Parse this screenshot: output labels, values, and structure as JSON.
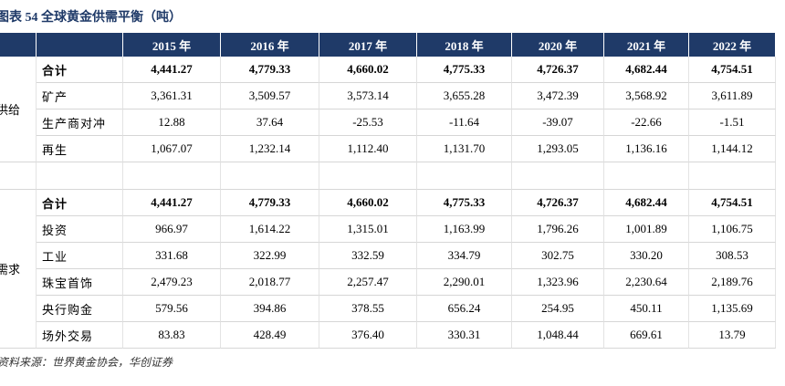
{
  "title": "图表 54  全球黄金供需平衡（吨）",
  "table": {
    "columns": [
      "2015 年",
      "2016 年",
      "2017 年",
      "2018 年",
      "2020 年",
      "2021 年",
      "2022 年"
    ],
    "groups": [
      {
        "label": "供给",
        "rows": [
          {
            "label": "合计",
            "values": [
              "4,441.27",
              "4,779.33",
              "4,660.02",
              "4,775.33",
              "4,726.37",
              "4,682.44",
              "4,754.51"
            ]
          },
          {
            "label": "矿产",
            "values": [
              "3,361.31",
              "3,509.57",
              "3,573.14",
              "3,655.28",
              "3,472.39",
              "3,568.92",
              "3,611.89"
            ]
          },
          {
            "label": "生产商对冲",
            "values": [
              "12.88",
              "37.64",
              "-25.53",
              "-11.64",
              "-39.07",
              "-22.66",
              "-1.51"
            ]
          },
          {
            "label": "再生",
            "values": [
              "1,067.07",
              "1,232.14",
              "1,112.40",
              "1,131.70",
              "1,293.05",
              "1,136.16",
              "1,144.12"
            ]
          }
        ]
      },
      {
        "label": "需求",
        "rows": [
          {
            "label": "合计",
            "values": [
              "4,441.27",
              "4,779.33",
              "4,660.02",
              "4,775.33",
              "4,726.37",
              "4,682.44",
              "4,754.51"
            ]
          },
          {
            "label": "投资",
            "values": [
              "966.97",
              "1,614.22",
              "1,315.01",
              "1,163.99",
              "1,796.26",
              "1,001.89",
              "1,106.75"
            ]
          },
          {
            "label": "工业",
            "values": [
              "331.68",
              "322.99",
              "332.59",
              "334.79",
              "302.75",
              "330.20",
              "308.53"
            ]
          },
          {
            "label": "珠宝首饰",
            "values": [
              "2,479.23",
              "2,018.77",
              "2,257.47",
              "2,290.01",
              "1,323.96",
              "2,230.64",
              "2,189.76"
            ]
          },
          {
            "label": "央行购金",
            "values": [
              "579.56",
              "394.86",
              "378.55",
              "656.24",
              "254.95",
              "450.11",
              "1,135.69"
            ]
          },
          {
            "label": "场外交易",
            "values": [
              "83.83",
              "428.49",
              "376.40",
              "330.31",
              "1,048.44",
              "669.61",
              "13.79"
            ]
          }
        ]
      }
    ]
  },
  "source": "资料来源：世界黄金协会，华创证券"
}
